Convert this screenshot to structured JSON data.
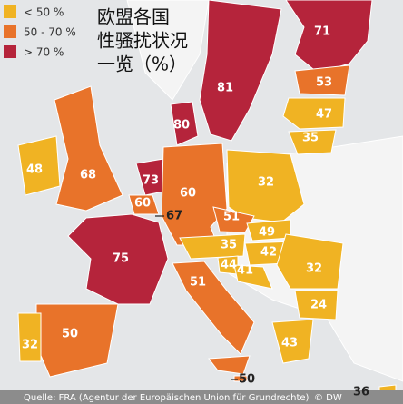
{
  "legend": [
    {
      "label": "< 50 %"
    },
    {
      "label": "50 - 70 %"
    },
    {
      "label": "> 70 %"
    }
  ],
  "title_lines": [
    "欧盟各国",
    "性骚扰状况",
    "一览（%）"
  ],
  "regions": [
    {
      "value": "71"
    },
    {
      "value": "81"
    },
    {
      "value": "53"
    },
    {
      "value": "47"
    },
    {
      "value": "35"
    },
    {
      "value": "80"
    },
    {
      "value": "48"
    },
    {
      "value": "68"
    },
    {
      "value": "73"
    },
    {
      "value": "60"
    },
    {
      "value": "67"
    },
    {
      "value": "60"
    },
    {
      "value": "32"
    },
    {
      "value": "51"
    },
    {
      "value": "75"
    },
    {
      "value": "35"
    },
    {
      "value": "49"
    },
    {
      "value": "44"
    },
    {
      "value": "41"
    },
    {
      "value": "42"
    },
    {
      "value": "32"
    },
    {
      "value": "24"
    },
    {
      "value": "51"
    },
    {
      "value": "50"
    },
    {
      "value": "32"
    },
    {
      "value": "43"
    },
    {
      "value": "50"
    },
    {
      "value": "36"
    }
  ],
  "source": "Quelle: FRA (Agentur der Europäischen Union für Grundrechte)",
  "credit": "© DW"
}
